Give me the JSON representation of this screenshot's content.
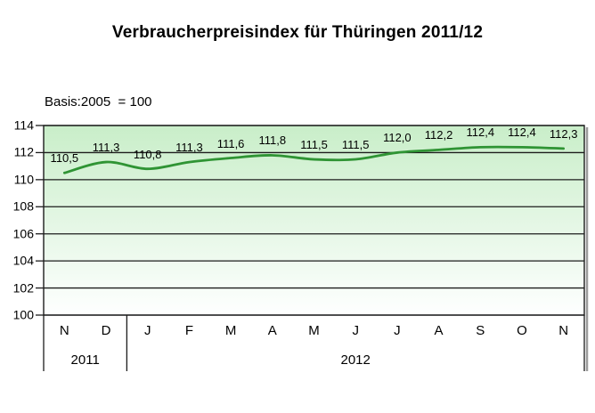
{
  "page": {
    "background": "#ffffff"
  },
  "chart_data": {
    "type": "line",
    "title": "Verbraucherpreisindex für Thüringen 2011/12",
    "subtitle": "Basis:2005  = 100",
    "xlabel": "",
    "ylabel": "",
    "categories": [
      "N",
      "D",
      "J",
      "F",
      "M",
      "A",
      "M",
      "J",
      "J",
      "A",
      "S",
      "O",
      "N"
    ],
    "year_groups": [
      {
        "label": "2011",
        "count": 2
      },
      {
        "label": "2012",
        "count": 11
      }
    ],
    "values": [
      110.5,
      111.3,
      110.8,
      111.3,
      111.6,
      111.8,
      111.5,
      111.5,
      112.0,
      112.2,
      112.4,
      112.4,
      112.3
    ],
    "value_labels": [
      "110,5",
      "111,3",
      "110,8",
      "111,3",
      "111,6",
      "111,8",
      "111,5",
      "111,5",
      "112,0",
      "112,2",
      "112,4",
      "112,4",
      "112,3"
    ],
    "ylim": [
      100,
      114
    ],
    "yticks": [
      100,
      102,
      104,
      106,
      108,
      110,
      112,
      114
    ],
    "grid": true,
    "legend": "none",
    "line_smooth": true,
    "colors": {
      "line": "#2f9434",
      "plot_bg_top": "#c9eec9",
      "plot_bg_bottom": "#feffff",
      "grid_line": "#1c1c1c",
      "text": "#000000",
      "frame_shadow": "#9b9b9b"
    }
  }
}
